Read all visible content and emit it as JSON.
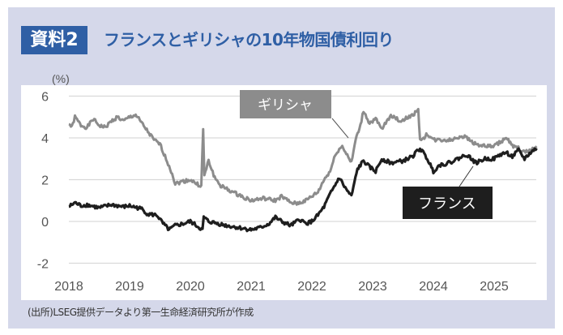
{
  "header": {
    "badge": "資料2",
    "title": "フランスとギリシャの10年物国債利回り"
  },
  "footer": {
    "source": "(出所)LSEG提供データより第一生命経済研究所が作成"
  },
  "colors": {
    "greece": "#8c8c8c",
    "france": "#1e1e1e",
    "accent": "#2f5fa5",
    "panel": "#d5d8ea",
    "grid": "#d9d9d9"
  },
  "chart_data": {
    "type": "line",
    "title": "フランスとギリシャの10年物国債利回り",
    "ylabel": "(%)",
    "xlabel": "",
    "ylim": [
      -2,
      6
    ],
    "xlim": [
      2018,
      2025.75
    ],
    "yticks": [
      6,
      4,
      2,
      0,
      -2
    ],
    "ytick_labels": [
      "6",
      "4",
      "2",
      "0",
      "-2"
    ],
    "xticks": [
      2018,
      2019,
      2020,
      2021,
      2022,
      2023,
      2024,
      2025
    ],
    "xtick_labels": [
      "2018",
      "2019",
      "2020",
      "2021",
      "2022",
      "2023",
      "2024",
      "2025"
    ],
    "grid": true,
    "series": [
      {
        "name": "ギリシャ",
        "x": [
          2018.0,
          2018.05,
          2018.1,
          2018.2,
          2018.3,
          2018.4,
          2018.5,
          2018.6,
          2018.7,
          2018.8,
          2018.9,
          2019.0,
          2019.1,
          2019.2,
          2019.3,
          2019.4,
          2019.5,
          2019.6,
          2019.7,
          2019.75,
          2019.85,
          2020.0,
          2020.1,
          2020.18,
          2020.21,
          2020.23,
          2020.3,
          2020.4,
          2020.5,
          2020.7,
          2020.85,
          2021.0,
          2021.2,
          2021.4,
          2021.5,
          2021.65,
          2021.75,
          2021.9,
          2022.0,
          2022.1,
          2022.2,
          2022.3,
          2022.4,
          2022.5,
          2022.6,
          2022.65,
          2022.72,
          2022.8,
          2022.85,
          2022.95,
          2023.05,
          2023.15,
          2023.3,
          2023.45,
          2023.6,
          2023.75,
          2023.78,
          2023.82,
          2023.9,
          2024.0,
          2024.15,
          2024.3,
          2024.45,
          2024.55,
          2024.7,
          2024.85,
          2025.0,
          2025.1,
          2025.2,
          2025.3,
          2025.4,
          2025.5,
          2025.6,
          2025.7
        ],
        "y": [
          4.7,
          4.5,
          5.0,
          4.6,
          4.5,
          4.9,
          4.6,
          4.5,
          4.8,
          5.0,
          4.8,
          5.0,
          5.1,
          4.7,
          4.3,
          3.9,
          3.7,
          3.0,
          2.3,
          1.8,
          1.9,
          2.0,
          1.8,
          1.7,
          4.4,
          2.2,
          2.9,
          2.1,
          1.7,
          1.4,
          1.2,
          1.0,
          1.1,
          1.0,
          1.2,
          0.9,
          0.85,
          1.0,
          1.2,
          1.4,
          2.0,
          2.4,
          3.3,
          3.6,
          3.1,
          2.8,
          3.9,
          4.6,
          5.3,
          4.7,
          4.9,
          4.4,
          5.1,
          4.8,
          5.0,
          5.3,
          4.0,
          3.9,
          4.2,
          3.9,
          3.9,
          3.9,
          4.1,
          4.0,
          3.7,
          3.6,
          3.6,
          3.8,
          4.0,
          3.6,
          3.5,
          3.3,
          3.4,
          3.6
        ]
      },
      {
        "name": "フランス",
        "x": [
          2018.0,
          2018.1,
          2018.2,
          2018.3,
          2018.5,
          2018.7,
          2018.9,
          2019.0,
          2019.2,
          2019.3,
          2019.45,
          2019.55,
          2019.65,
          2019.75,
          2019.9,
          2020.0,
          2020.1,
          2020.2,
          2020.22,
          2020.3,
          2020.45,
          2020.6,
          2020.8,
          2021.0,
          2021.15,
          2021.3,
          2021.4,
          2021.5,
          2021.65,
          2021.8,
          2021.9,
          2022.0,
          2022.1,
          2022.2,
          2022.3,
          2022.45,
          2022.55,
          2022.65,
          2022.75,
          2022.85,
          2022.95,
          2023.05,
          2023.15,
          2023.3,
          2023.5,
          2023.65,
          2023.78,
          2023.9,
          2024.0,
          2024.1,
          2024.25,
          2024.4,
          2024.55,
          2024.7,
          2024.85,
          2025.0,
          2025.1,
          2025.2,
          2025.3,
          2025.4,
          2025.5,
          2025.6,
          2025.7
        ],
        "y": [
          0.7,
          0.9,
          0.75,
          0.8,
          0.65,
          0.8,
          0.7,
          0.75,
          0.6,
          0.35,
          0.3,
          -0.1,
          -0.4,
          -0.2,
          -0.1,
          0.0,
          -0.2,
          -0.4,
          0.2,
          0.0,
          -0.1,
          -0.2,
          -0.3,
          -0.4,
          -0.3,
          -0.1,
          0.2,
          0.0,
          -0.2,
          0.1,
          -0.1,
          0.0,
          0.3,
          0.7,
          1.3,
          2.1,
          1.6,
          1.2,
          2.5,
          2.9,
          2.6,
          2.4,
          3.0,
          2.8,
          2.9,
          3.1,
          3.5,
          3.0,
          2.4,
          2.7,
          2.8,
          3.0,
          3.2,
          2.8,
          3.0,
          3.0,
          3.2,
          3.3,
          3.1,
          3.4,
          3.0,
          3.3,
          3.5
        ]
      }
    ],
    "annotations": [
      {
        "text": "ギリシャ",
        "series": "ギリシャ"
      },
      {
        "text": "フランス",
        "series": "フランス"
      }
    ]
  }
}
